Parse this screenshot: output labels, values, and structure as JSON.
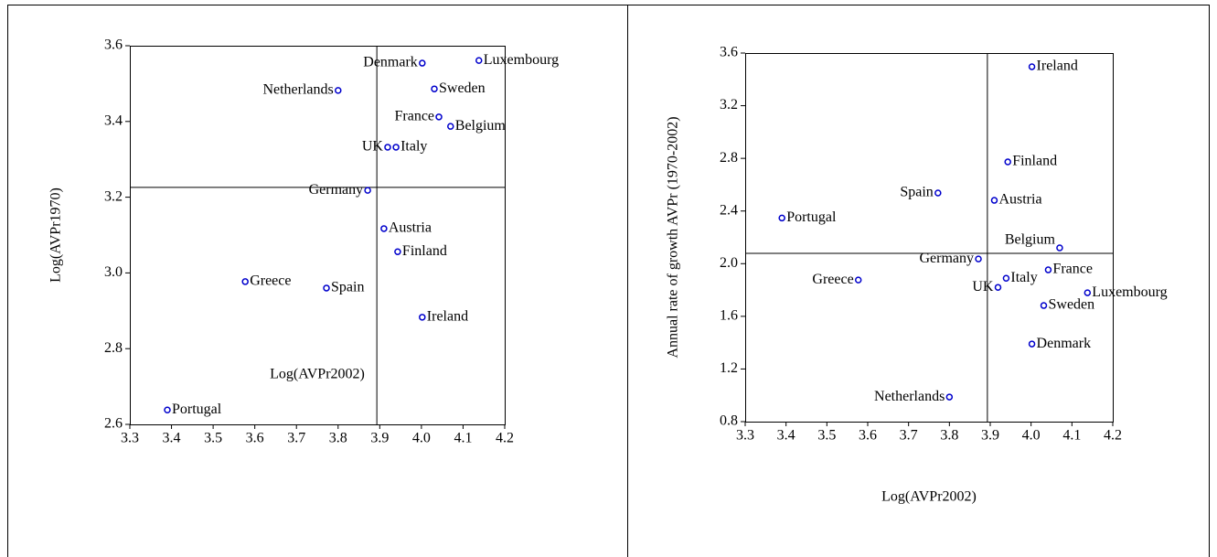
{
  "chart_data": [
    {
      "type": "scatter",
      "xlabel": "Log(AVPr2002)",
      "ylabel": "Log(AVPr1970)",
      "labels": [
        "Denmark",
        "Luxembourg",
        "Netherlands",
        "Sweden",
        "France",
        "Belgium",
        "UK",
        "Italy",
        "Germany",
        "Austria",
        "Finland",
        "Greece",
        "Spain",
        "Ireland",
        "Portugal"
      ],
      "x": [
        4.002,
        4.138,
        3.8,
        4.031,
        4.042,
        4.07,
        3.919,
        3.939,
        3.871,
        3.91,
        3.943,
        3.577,
        3.772,
        4.002,
        3.39
      ],
      "y": [
        3.554,
        3.561,
        3.482,
        3.486,
        3.412,
        3.387,
        3.332,
        3.332,
        3.218,
        3.117,
        3.056,
        2.977,
        2.96,
        2.883,
        2.638
      ],
      "color": "#0000cc",
      "vline": 3.893,
      "hline": 3.226,
      "xlim": [
        3.3,
        4.2
      ],
      "ylim": [
        2.6,
        3.6
      ],
      "xticks": [
        3.3,
        3.4,
        3.5,
        3.6,
        3.7,
        3.8,
        3.9,
        {
          "value": 4,
          "label": "4.0"
        },
        4.1,
        4.2
      ],
      "yticks": [
        2.6,
        2.8,
        {
          "value": 3,
          "label": "3.0"
        },
        3.2,
        3.4,
        3.6
      ]
    },
    {
      "type": "scatter",
      "xlabel": "Log(AVPr2002)",
      "ylabel": "Annual rate of growth AVPr (1970-2002)",
      "labels": [
        "Ireland",
        "Finland",
        "Spain",
        "Austria",
        "Portugal",
        "Belgium",
        "Germany",
        "France",
        "Greece",
        "Italy",
        "UK",
        "Luxembourg",
        "Sweden",
        "Denmark",
        "Netherlands"
      ],
      "x": [
        4.002,
        3.943,
        3.772,
        3.91,
        3.39,
        4.07,
        3.871,
        4.042,
        3.577,
        3.939,
        3.919,
        4.138,
        4.031,
        4.002,
        3.8
      ],
      "y": [
        3.496,
        2.773,
        2.537,
        2.481,
        2.347,
        2.12,
        2.036,
        1.953,
        1.876,
        1.889,
        1.82,
        1.779,
        1.682,
        1.39,
        0.987
      ],
      "color": "#0000cc",
      "vline": 3.893,
      "hline": 2.078,
      "xlim": [
        3.3,
        4.2
      ],
      "ylim": [
        0.8,
        3.6
      ],
      "xticks": [
        3.3,
        3.4,
        3.5,
        3.6,
        3.7,
        3.8,
        3.9,
        {
          "value": 4,
          "label": "4.0"
        },
        4.1,
        4.2
      ],
      "yticks": [
        0.8,
        1.2,
        1.6,
        {
          "value": 2,
          "label": "2.0"
        },
        2.4,
        2.8,
        3.2,
        3.6
      ]
    }
  ]
}
